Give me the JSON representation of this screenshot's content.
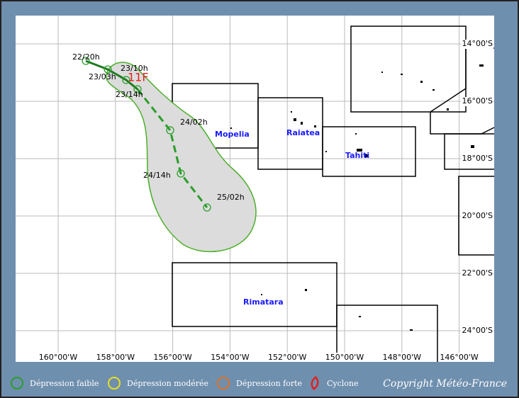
{
  "map": {
    "storm_name": "11F",
    "track_labels": [
      "22/20h",
      "23/03h",
      "23/10h",
      "23/14h",
      "24/02h",
      "24/14h",
      "25/02h"
    ],
    "places": [
      "Mopelia",
      "Raiatea",
      "Tahiti",
      "Rimatara"
    ],
    "longitude_labels": [
      "160°00'W",
      "158°00'W",
      "156°00'W",
      "154°00'W",
      "152°00'W",
      "150°00'W",
      "148°00'W",
      "146°00'W"
    ],
    "latitude_labels": [
      "14°00'S",
      "16°00'S",
      "18°00'S",
      "20°00'S",
      "22°00'S",
      "24°00'S"
    ]
  },
  "legend": {
    "items": [
      "Dépression faible",
      "Dépression modérée",
      "Dépression forte",
      "Cyclone"
    ],
    "copyright": "Copyright Météo-France"
  }
}
